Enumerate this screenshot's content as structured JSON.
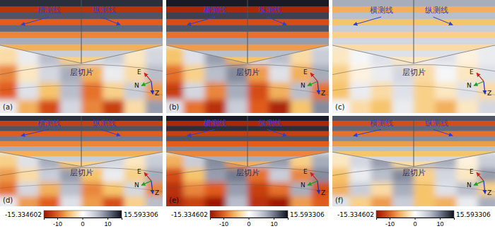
{
  "chart_data": [
    {
      "type": "heatmap",
      "title": "(a)",
      "annotations": [
        "横测线",
        "纵测线",
        "层切片"
      ],
      "axis_labels": [
        "E",
        "N",
        "Z"
      ],
      "section": [
        14,
        -13,
        12,
        -10,
        11,
        -8,
        7,
        -6,
        5,
        -4
      ],
      "cells": [
        [
          -3,
          2,
          6,
          -4,
          3,
          5,
          -2,
          4
        ],
        [
          -8,
          -2,
          4,
          7,
          -6,
          2,
          -3,
          6
        ],
        [
          -10,
          3,
          -5,
          6,
          -9,
          -4,
          5,
          -7
        ],
        [
          2,
          -6,
          -11,
          4,
          -8,
          -12,
          -3,
          8
        ]
      ]
    },
    {
      "type": "heatmap",
      "title": "(b)",
      "annotations": [
        "横测线",
        "纵测线",
        "层切片"
      ],
      "axis_labels": [
        "E",
        "N",
        "Z"
      ],
      "section": [
        15,
        -14,
        13,
        -11,
        12,
        -9,
        8,
        -7,
        6,
        -5
      ],
      "cells": [
        [
          -5,
          3,
          8,
          -6,
          4,
          6,
          -3,
          5
        ],
        [
          -9,
          -4,
          6,
          9,
          -7,
          3,
          -6,
          7
        ],
        [
          -12,
          4,
          -8,
          7,
          -11,
          -6,
          6,
          -9
        ],
        [
          3,
          -9,
          -13,
          5,
          -10,
          -14,
          -5,
          9
        ]
      ]
    },
    {
      "type": "heatmap",
      "title": "(c)",
      "annotations": [
        "横测线",
        "纵测线",
        "层切片"
      ],
      "axis_labels": [
        "E",
        "N",
        "Z"
      ],
      "section": [
        7,
        -6,
        6,
        -5,
        5,
        -4,
        4,
        -3,
        3,
        -2
      ],
      "cells": [
        [
          -2,
          1,
          3,
          -2,
          2,
          3,
          -1,
          2
        ],
        [
          -4,
          -1,
          2,
          4,
          -3,
          1,
          -2,
          3
        ],
        [
          -5,
          2,
          -3,
          3,
          -4,
          -2,
          3,
          -3
        ],
        [
          1,
          -3,
          -5,
          2,
          -4,
          -6,
          -2,
          4
        ]
      ]
    },
    {
      "type": "heatmap",
      "title": "(d)",
      "annotations": [
        "横测线",
        "纵测线",
        "层切片"
      ],
      "axis_labels": [
        "E",
        "N",
        "Z"
      ],
      "section": [
        14,
        -12,
        12,
        -10,
        10,
        -8,
        7,
        -6,
        5,
        -4
      ],
      "cells": [
        [
          -4,
          3,
          7,
          -5,
          4,
          4,
          -2,
          5
        ],
        [
          -7,
          -3,
          5,
          8,
          -5,
          2,
          -4,
          7
        ],
        [
          -9,
          4,
          -6,
          6,
          -8,
          -5,
          4,
          -8
        ],
        [
          2,
          -7,
          -10,
          3,
          -7,
          -11,
          -4,
          6
        ]
      ],
      "colorbar": {
        "range": [
          -15.334602,
          15.593306
        ],
        "ticks": [
          -10,
          0,
          10
        ]
      }
    },
    {
      "type": "heatmap",
      "title": "(e)",
      "annotations": [
        "横测线",
        "纵测线",
        "层切片"
      ],
      "axis_labels": [
        "E",
        "N",
        "Z"
      ],
      "section": [
        15,
        -14,
        14,
        -12,
        12,
        -10,
        9,
        -8,
        7,
        -6
      ],
      "cells": [
        [
          -6,
          5,
          9,
          -7,
          6,
          8,
          -4,
          7
        ],
        [
          -11,
          -5,
          8,
          10,
          -9,
          5,
          -8,
          9
        ],
        [
          -13,
          -8,
          -10,
          8,
          -12,
          -9,
          7,
          -11
        ],
        [
          -14,
          -12,
          -15,
          6,
          -13,
          -15,
          -7,
          -10
        ]
      ],
      "colorbar": {
        "range": [
          -15.334602,
          15.593306
        ],
        "ticks": [
          -10,
          0,
          10
        ]
      }
    },
    {
      "type": "heatmap",
      "title": "(f)",
      "annotations": [
        "横测线",
        "纵测线",
        "层切片"
      ],
      "axis_labels": [
        "E",
        "N",
        "Z"
      ],
      "section": [
        12,
        -11,
        11,
        -9,
        9,
        -7,
        6,
        -5,
        4,
        -3
      ],
      "cells": [
        [
          -2,
          4,
          8,
          -3,
          6,
          7,
          -1,
          5
        ],
        [
          -5,
          2,
          6,
          9,
          -4,
          4,
          -2,
          8
        ],
        [
          -6,
          5,
          -3,
          7,
          -5,
          3,
          6,
          -4
        ],
        [
          3,
          -4,
          -7,
          5,
          -5,
          -6,
          2,
          7
        ]
      ],
      "colorbar": {
        "range": [
          -15.334602,
          15.593306
        ],
        "ticks": [
          -10,
          0,
          10
        ]
      }
    }
  ]
}
